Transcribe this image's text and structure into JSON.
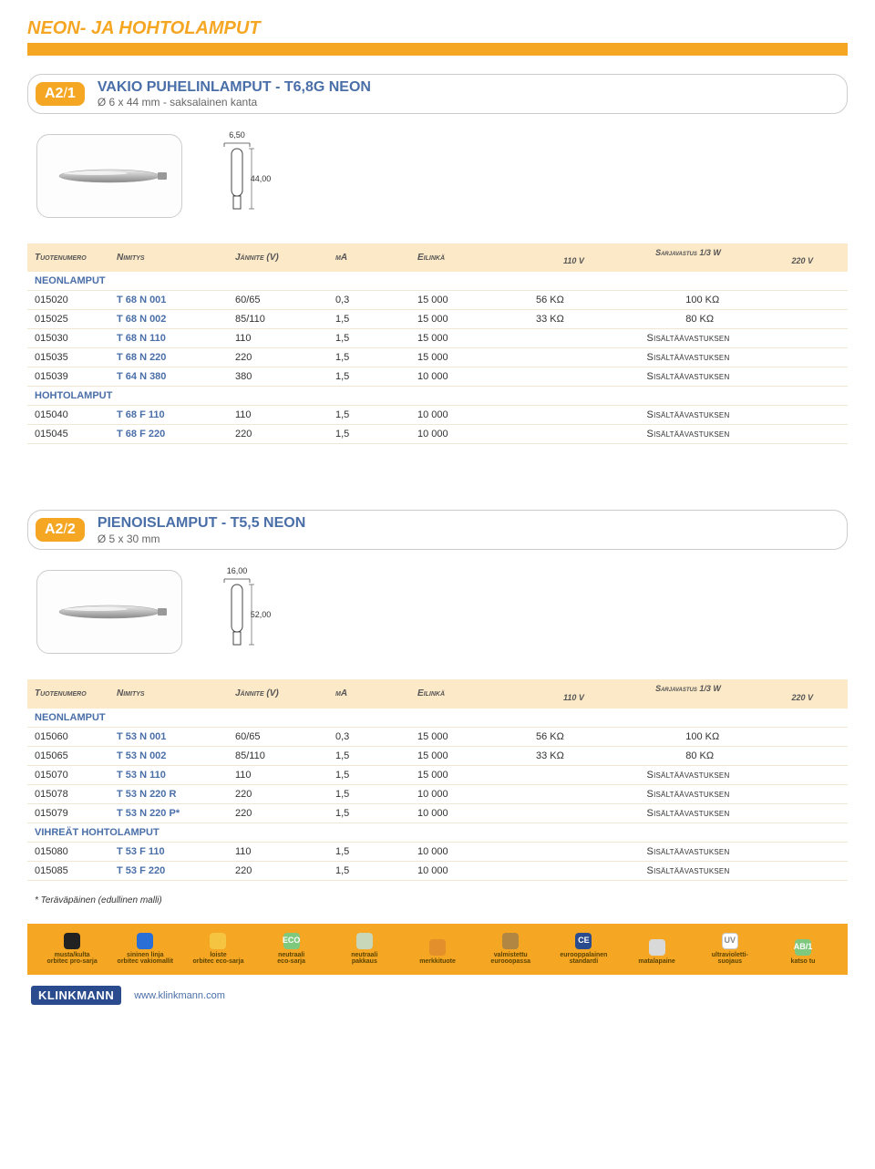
{
  "page": {
    "title": "NEON- JA HOHTOLAMPUT",
    "footer_link": "www.klinkmann.com",
    "logo": "KLINKMANN"
  },
  "sections": [
    {
      "badge": "A2/1",
      "title_main": "VAKIO PUHELINLAMPUT - T6,8G NEON",
      "title_sub": "Ø 6 x 44 mm - saksalainen kanta",
      "diagram": {
        "width_label": "6,50",
        "height_label": "44,00",
        "type": "tube-german-base"
      },
      "headers": [
        "Tuotenumero",
        "Nimitys",
        "Jännite (V)",
        "mA",
        "Eilinkä",
        "Sarjavastus 1/3 W",
        "110 V",
        "220 V"
      ],
      "groups": [
        {
          "label": "NEONLAMPUT",
          "rows": [
            {
              "num": "015020",
              "code": "T 68 N 001",
              "volt": "60/65",
              "ma": "0,3",
              "life": "15 000",
              "r110": "56 KΩ",
              "r220": "100 KΩ"
            },
            {
              "num": "015025",
              "code": "T 68 N 002",
              "volt": "85/110",
              "ma": "1,5",
              "life": "15 000",
              "r110": "33 KΩ",
              "r220": "80 KΩ"
            },
            {
              "num": "015030",
              "code": "T 68 N 110",
              "volt": "110",
              "ma": "1,5",
              "life": "15 000",
              "span": "Sisältäävastuksen"
            },
            {
              "num": "015035",
              "code": "T 68 N 220",
              "volt": "220",
              "ma": "1,5",
              "life": "15 000",
              "span": "Sisältäävastuksen"
            },
            {
              "num": "015039",
              "code": "T 64 N 380",
              "volt": "380",
              "ma": "1,5",
              "life": "10 000",
              "span": "Sisältäävastuksen"
            }
          ]
        },
        {
          "label": "HOHTOLAMPUT",
          "rows": [
            {
              "num": "015040",
              "code": "T 68 F 110",
              "volt": "110",
              "ma": "1,5",
              "life": "10 000",
              "span": "Sisältäävastuksen"
            },
            {
              "num": "015045",
              "code": "T 68 F 220",
              "volt": "220",
              "ma": "1,5",
              "life": "10 000",
              "span": "Sisältäävastuksen"
            }
          ]
        }
      ]
    },
    {
      "badge": "A2/2",
      "title_main": "PIENOISLAMPUT - T5,5 NEON",
      "title_sub": "Ø 5 x 30 mm",
      "diagram": {
        "width_label": "16,00",
        "height_label": "52,00",
        "type": "tube-base"
      },
      "headers": [
        "Tuotenumero",
        "Nimitys",
        "Jännite (V)",
        "mA",
        "Eilinkä",
        "Sarjavastus 1/3 W",
        "110 V",
        "220 V"
      ],
      "groups": [
        {
          "label": "NEONLAMPUT",
          "rows": [
            {
              "num": "015060",
              "code": "T 53 N 001",
              "volt": "60/65",
              "ma": "0,3",
              "life": "15 000",
              "r110": "56 KΩ",
              "r220": "100 KΩ"
            },
            {
              "num": "015065",
              "code": "T 53 N 002",
              "volt": "85/110",
              "ma": "1,5",
              "life": "15 000",
              "r110": "33 KΩ",
              "r220": "80 KΩ"
            },
            {
              "num": "015070",
              "code": "T 53 N 110",
              "volt": "110",
              "ma": "1,5",
              "life": "15 000",
              "span": "Sisältäävastuksen"
            },
            {
              "num": "015078",
              "code": "T 53 N 220 R",
              "volt": "220",
              "ma": "1,5",
              "life": "10 000",
              "span": "Sisältäävastuksen"
            },
            {
              "num": "015079",
              "code": "T 53 N 220 P*",
              "volt": "220",
              "ma": "1,5",
              "life": "10 000",
              "span": "Sisältäävastuksen"
            }
          ]
        },
        {
          "label": "VIHREÄT HOHTOLAMPUT",
          "rows": [
            {
              "num": "015080",
              "code": "T 53 F 110",
              "volt": "110",
              "ma": "1,5",
              "life": "10 000",
              "span": "Sisältäävastuksen"
            },
            {
              "num": "015085",
              "code": "T 53 F 220",
              "volt": "220",
              "ma": "1,5",
              "life": "10 000",
              "span": "Sisältäävastuksen"
            }
          ]
        }
      ],
      "footnote": "* Teräväpäinen (edullinen malli)"
    }
  ],
  "legend": [
    {
      "color": "#222222",
      "line1": "musta/kulta",
      "line2": "orbitec pro-sarja"
    },
    {
      "color": "#2a6fd6",
      "line1": "sininen linja",
      "line2": "orbitec vakiomallit"
    },
    {
      "color": "#f5c542",
      "line1": "loiste",
      "line2": "orbitec eco-sarja"
    },
    {
      "color": "#7fc97f",
      "text": "ECO",
      "line1": "neutraali",
      "line2": "eco-sarja"
    },
    {
      "color": "#c8d6b9",
      "line1": "neutraali",
      "line2": "pakkaus"
    },
    {
      "color": "#e28f2c",
      "line1": "merkkituote",
      "line2": ""
    },
    {
      "color": "#b08642",
      "line1": "valmistettu",
      "line2": "eurooopassa"
    },
    {
      "color": "#2a4b8d",
      "text": "CE",
      "line1": "eurooppalainen",
      "line2": "standardi"
    },
    {
      "color": "#d9d9d9",
      "line1": "matalapaine",
      "line2": ""
    },
    {
      "color": "#ffffff",
      "text": "UV",
      "line1": "ultravioletti-",
      "line2": "suojaus"
    },
    {
      "color": "#7fc97f",
      "text": "AB/1",
      "line1": "katso tu",
      "line2": ""
    }
  ],
  "colors": {
    "accent": "#f5a623",
    "header_bg": "#fce9c8",
    "link": "#4a6fa8",
    "row_border": "#f0e6d2"
  }
}
